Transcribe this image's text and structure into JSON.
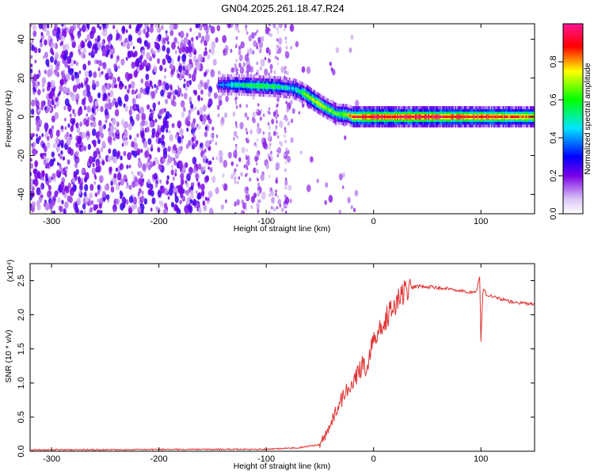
{
  "title": "GN04.2025.261.18.47.R24",
  "chart_data": [
    {
      "type": "heatmap",
      "xlabel": "Height of straight line (km)",
      "ylabel": "Frequency (Hz)",
      "xlim": [
        -320,
        150
      ],
      "ylim": [
        -50,
        48
      ],
      "xticks": [
        -300,
        -200,
        -100,
        0,
        100
      ],
      "yticks": [
        -40,
        -20,
        0,
        20,
        40
      ],
      "colorbar": {
        "label": "Normalized spectral amplitude",
        "range": [
          0,
          1
        ],
        "ticks": [
          0.0,
          0.2,
          0.4,
          0.6,
          0.8
        ],
        "colormap": [
          "#ffffff",
          "#d9c2f5",
          "#7a00e6",
          "#0000ff",
          "#00e5ff",
          "#00ff00",
          "#ffff00",
          "#ff0000",
          "#ff1493"
        ]
      },
      "ridge": {
        "x": [
          -145,
          -130,
          -110,
          -90,
          -75,
          -65,
          -55,
          -45,
          -35,
          -25,
          -20,
          0,
          50,
          100,
          150
        ],
        "y": [
          16.5,
          16.5,
          16,
          15.5,
          14.5,
          12,
          8,
          4.5,
          1.5,
          1,
          0,
          0,
          0,
          0,
          0
        ],
        "amplitude": [
          0.35,
          0.5,
          0.6,
          0.55,
          0.45,
          0.65,
          0.75,
          0.7,
          0.65,
          0.7,
          0.9,
          0.95,
          0.95,
          0.9,
          0.85
        ]
      },
      "noise_region_x": [
        -320,
        -75
      ]
    },
    {
      "type": "line",
      "xlabel": "Height of straight line (km)",
      "ylabel": "SNR (10 * v/v)",
      "y_multiplier": "(x10⁴)",
      "xlim": [
        -320,
        150
      ],
      "ylim": [
        0,
        2.75
      ],
      "xticks": [
        -300,
        -200,
        -100,
        0,
        100
      ],
      "yticks": [
        0.0,
        0.5,
        1.0,
        1.5,
        2.0,
        2.5
      ],
      "series": [
        {
          "color": "#e03030",
          "x": [
            -320,
            -100,
            -70,
            -50,
            -42,
            -35,
            -25,
            -15,
            -5,
            0,
            10,
            20,
            30,
            40,
            60,
            80,
            95,
            99,
            100,
            102,
            105,
            115,
            130,
            150
          ],
          "y": [
            0.02,
            0.03,
            0.05,
            0.1,
            0.3,
            0.6,
            0.9,
            1.15,
            1.3,
            1.6,
            1.9,
            2.15,
            2.35,
            2.42,
            2.4,
            2.36,
            2.32,
            2.55,
            1.6,
            2.4,
            2.3,
            2.25,
            2.18,
            2.15
          ]
        }
      ]
    }
  ]
}
